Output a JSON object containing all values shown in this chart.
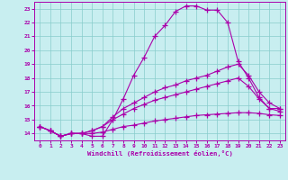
{
  "xlabel": "Windchill (Refroidissement éolien,°C)",
  "bg_color": "#c8eef0",
  "line_color": "#aa00aa",
  "grid_color": "#88cccc",
  "xlim": [
    -0.5,
    23.5
  ],
  "ylim": [
    13.5,
    23.5
  ],
  "yticks": [
    14,
    15,
    16,
    17,
    18,
    19,
    20,
    21,
    22,
    23
  ],
  "xticks": [
    0,
    1,
    2,
    3,
    4,
    5,
    6,
    7,
    8,
    9,
    10,
    11,
    12,
    13,
    14,
    15,
    16,
    17,
    18,
    19,
    20,
    21,
    22,
    23
  ],
  "series1": [
    14.5,
    14.2,
    13.8,
    14.0,
    14.0,
    13.8,
    13.8,
    15.0,
    16.5,
    18.2,
    19.5,
    21.0,
    21.8,
    22.8,
    23.2,
    23.2,
    22.9,
    22.9,
    22.0,
    19.2,
    18.0,
    16.6,
    15.8,
    15.8
  ],
  "series2": [
    14.5,
    14.2,
    13.8,
    14.0,
    14.0,
    14.2,
    14.5,
    15.2,
    15.8,
    16.2,
    16.6,
    17.0,
    17.3,
    17.5,
    17.8,
    18.0,
    18.2,
    18.5,
    18.8,
    19.0,
    18.2,
    17.0,
    16.2,
    15.8
  ],
  "series3": [
    14.5,
    14.2,
    13.8,
    14.0,
    14.0,
    14.2,
    14.5,
    15.0,
    15.4,
    15.8,
    16.1,
    16.4,
    16.6,
    16.8,
    17.0,
    17.2,
    17.4,
    17.6,
    17.8,
    18.0,
    17.4,
    16.5,
    15.8,
    15.6
  ],
  "series4": [
    14.5,
    14.2,
    13.8,
    14.0,
    14.0,
    14.0,
    14.1,
    14.3,
    14.5,
    14.6,
    14.75,
    14.9,
    15.0,
    15.1,
    15.2,
    15.3,
    15.35,
    15.4,
    15.45,
    15.5,
    15.5,
    15.45,
    15.35,
    15.3
  ]
}
